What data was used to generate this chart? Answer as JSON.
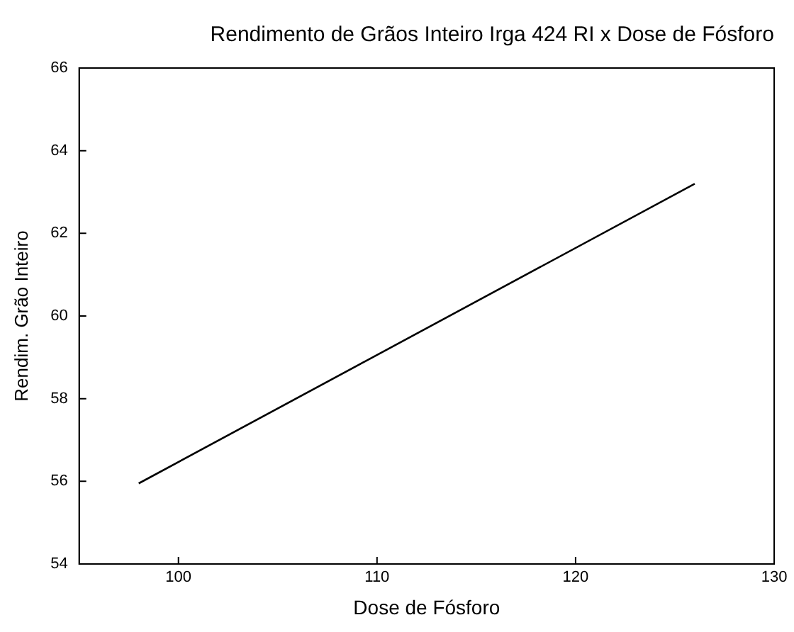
{
  "chart_data": {
    "type": "line",
    "title": "Rendimento de Grãos Inteiro Irga 424 RI x Dose de Fósforo",
    "xlabel": "Dose de Fósforo",
    "ylabel": "Rendim. Grão Inteiro",
    "x": [
      98,
      126
    ],
    "series": [
      {
        "color": "#000000",
        "values": [
          55.95,
          63.2
        ]
      }
    ],
    "xlim": [
      95,
      130
    ],
    "xticks": [
      100,
      110,
      120,
      130
    ],
    "ylim": [
      54,
      66
    ],
    "yticks": [
      54,
      56,
      58,
      60,
      62,
      64,
      66
    ],
    "grid": false,
    "legend": false,
    "marker": "none",
    "line_style": "solid"
  }
}
